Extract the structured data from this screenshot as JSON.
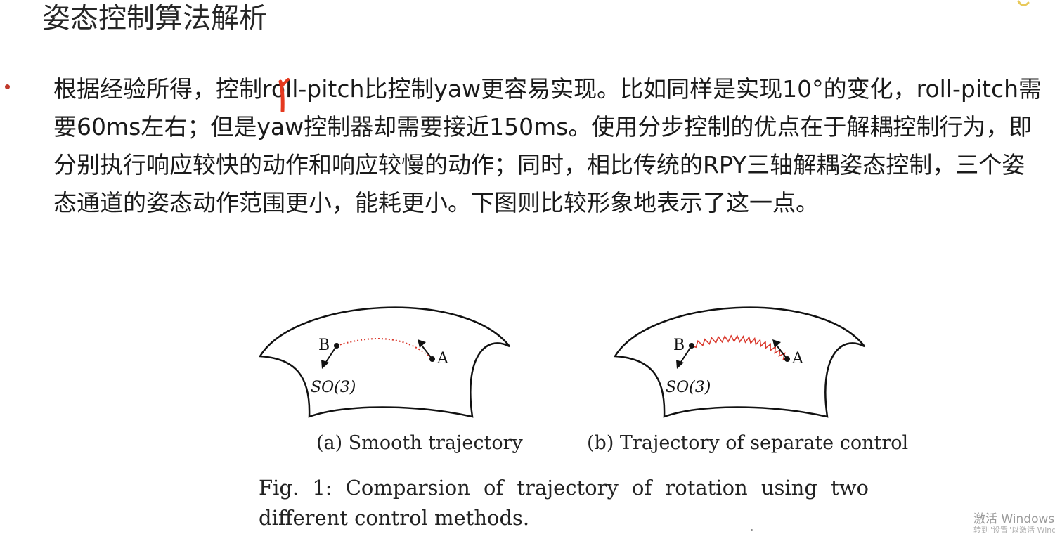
{
  "slide": {
    "title": "姿态控制算法解析",
    "paragraph": "根据经验所得，控制roll-pitch比控制yaw更容易实现。比如同样是实现10°的变化，roll-pitch需要60ms左右；但是yaw控制器却需要接近150ms。使用分步控制的优点在于解耦控制行为，即分别执行响应较快的动作和响应较慢的动作；同时，相比传统的RPY三轴解耦姿态控制，三个姿态通道的姿态动作范围更小，能耗更小。下图则比较形象地表示了这一点。"
  },
  "figure": {
    "panel_a": {
      "point_a": "A",
      "point_b": "B",
      "manifold": "SO(3)",
      "subcaption": "(a) Smooth trajectory"
    },
    "panel_b": {
      "point_a": "A",
      "point_b": "B",
      "manifold": "SO(3)",
      "subcaption": "(b) Trajectory of separate control"
    },
    "caption": "Fig. 1: Comparsion of trajectory of rotation using two different control methods."
  },
  "watermark": {
    "line1": "激活 Windows",
    "line2": "转到\"设置\"以激活 Windows。"
  },
  "colors": {
    "trajectory": "#d9372b",
    "pen_mark": "#e5391f",
    "bullet": "#c0392b"
  }
}
